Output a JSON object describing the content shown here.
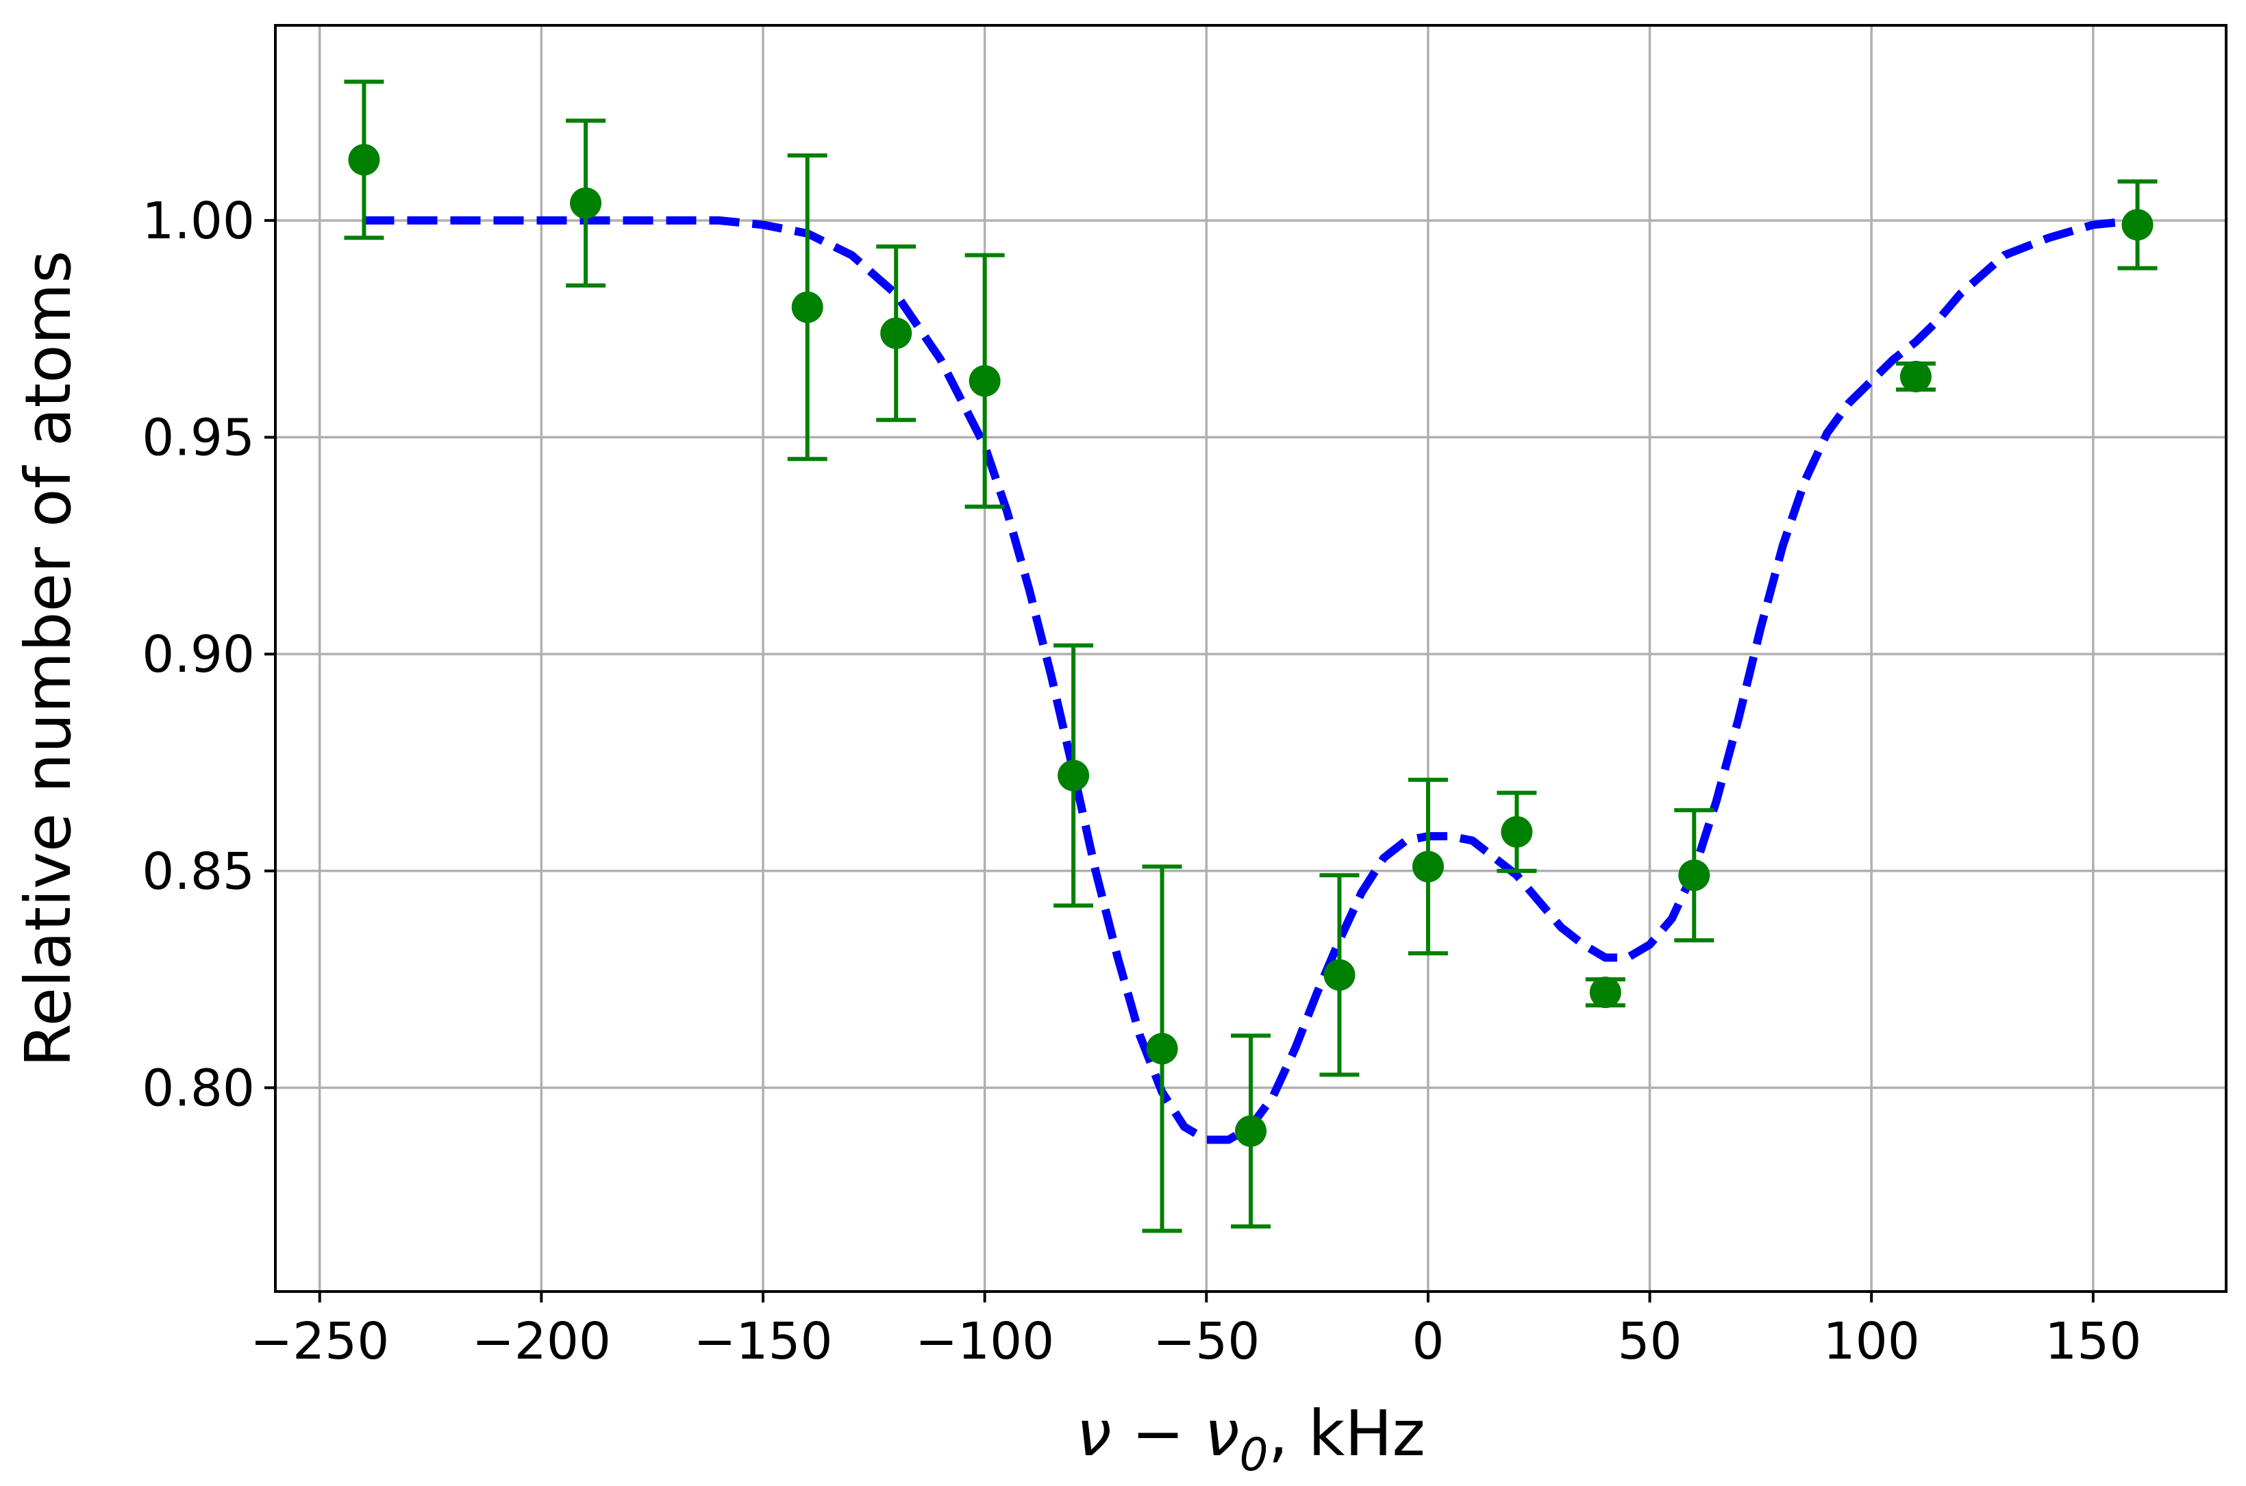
{
  "chart_data": {
    "type": "scatter",
    "title": "",
    "xlabel": "ν − ν",
    "xlabel_sub": "0",
    "xlabel_suffix": ", kHz",
    "ylabel": "Relative number of atoms",
    "xlim": [
      -260,
      180
    ],
    "ylim": [
      0.753,
      1.045
    ],
    "grid": true,
    "legend": "none",
    "x_ticks": [
      -250,
      -200,
      -150,
      -100,
      -50,
      0,
      50,
      100,
      150
    ],
    "x_tick_labels": [
      "−250",
      "−200",
      "−150",
      "−100",
      "−50",
      "0",
      "50",
      "100",
      "150"
    ],
    "y_ticks": [
      0.8,
      0.85,
      0.9,
      0.95,
      1.0
    ],
    "y_tick_labels": [
      "0.80",
      "0.85",
      "0.90",
      "0.95",
      "1.00"
    ],
    "series": [
      {
        "kind": "errorbar",
        "color": "#008000",
        "points": [
          {
            "x": -240,
            "y": 1.014,
            "err": 0.018
          },
          {
            "x": -190,
            "y": 1.004,
            "err": 0.019
          },
          {
            "x": -140,
            "y": 0.98,
            "err": 0.035
          },
          {
            "x": -120,
            "y": 0.974,
            "err": 0.02
          },
          {
            "x": -100,
            "y": 0.963,
            "err": 0.029
          },
          {
            "x": -80,
            "y": 0.872,
            "err": 0.03
          },
          {
            "x": -60,
            "y": 0.809,
            "err": 0.042
          },
          {
            "x": -40,
            "y": 0.79,
            "err": 0.022
          },
          {
            "x": -20,
            "y": 0.826,
            "err": 0.023
          },
          {
            "x": 0,
            "y": 0.851,
            "err": 0.02
          },
          {
            "x": 20,
            "y": 0.859,
            "err": 0.009
          },
          {
            "x": 40,
            "y": 0.822,
            "err": 0.003
          },
          {
            "x": 60,
            "y": 0.849,
            "err": 0.015
          },
          {
            "x": 110,
            "y": 0.964,
            "err": 0.003
          },
          {
            "x": 160,
            "y": 0.999,
            "err": 0.01
          }
        ]
      },
      {
        "kind": "line",
        "style": "dashed",
        "color": "#0000ff",
        "x": [
          -240,
          -220,
          -200,
          -180,
          -160,
          -150,
          -140,
          -130,
          -120,
          -110,
          -100,
          -95,
          -90,
          -85,
          -80,
          -75,
          -70,
          -65,
          -60,
          -55,
          -50,
          -45,
          -40,
          -35,
          -30,
          -25,
          -20,
          -15,
          -10,
          -5,
          0,
          5,
          10,
          15,
          20,
          25,
          30,
          35,
          40,
          45,
          50,
          55,
          60,
          65,
          70,
          75,
          80,
          85,
          90,
          95,
          100,
          105,
          110,
          115,
          120,
          130,
          140,
          150,
          160
        ],
        "y": [
          1.0,
          1.0,
          1.0,
          1.0,
          1.0,
          0.999,
          0.997,
          0.992,
          0.983,
          0.968,
          0.948,
          0.933,
          0.915,
          0.895,
          0.873,
          0.85,
          0.83,
          0.812,
          0.799,
          0.791,
          0.788,
          0.788,
          0.791,
          0.798,
          0.809,
          0.822,
          0.834,
          0.845,
          0.853,
          0.857,
          0.858,
          0.858,
          0.857,
          0.853,
          0.849,
          0.843,
          0.837,
          0.833,
          0.83,
          0.83,
          0.833,
          0.839,
          0.85,
          0.866,
          0.885,
          0.906,
          0.925,
          0.94,
          0.951,
          0.958,
          0.963,
          0.968,
          0.972,
          0.977,
          0.983,
          0.992,
          0.996,
          0.999,
          1.0
        ]
      }
    ]
  }
}
